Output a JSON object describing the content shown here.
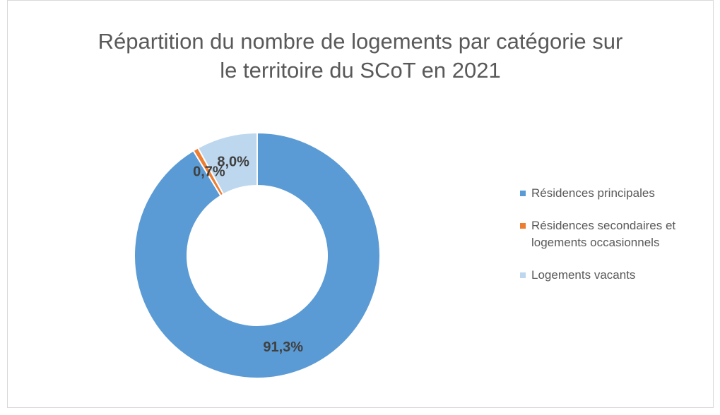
{
  "chart_data": {
    "type": "donut",
    "title": "Répartition du nombre de logements par catégorie sur le territoire du SCoT en 2021",
    "categories": [
      "Résidences principales",
      "Résidences secondaires et logements occasionnels",
      "Logements vacants"
    ],
    "values": [
      91.3,
      0.7,
      8.0
    ],
    "value_labels": [
      "91,3%",
      "0,7%",
      "8,0%"
    ],
    "colors": [
      "#5b9bd5",
      "#ed7d31",
      "#bdd7ee"
    ],
    "legend": "right"
  }
}
